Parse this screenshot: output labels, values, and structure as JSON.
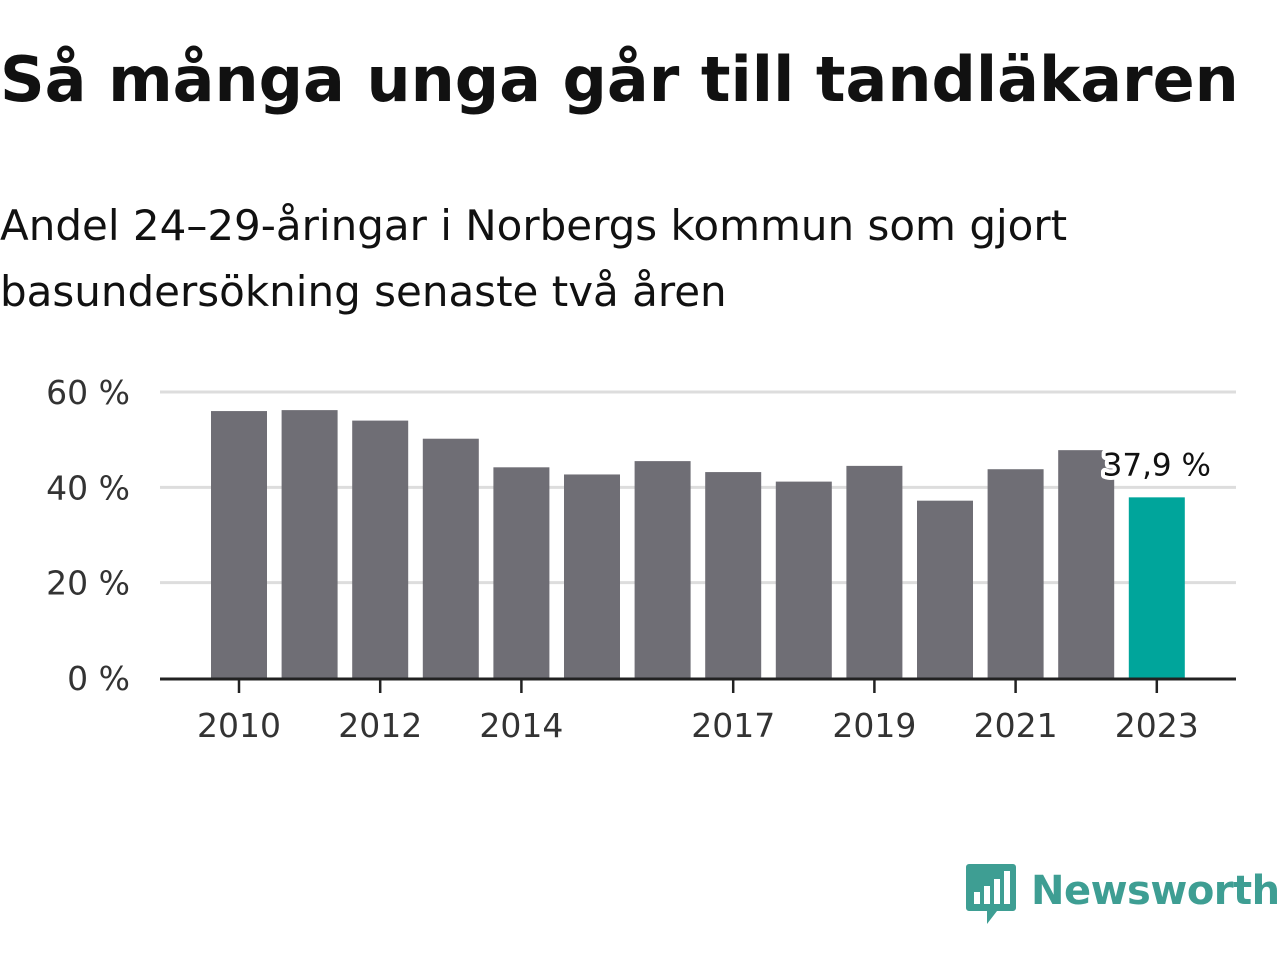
{
  "title": "Så många unga går till tandläkaren",
  "subtitle": "Andel 24–29-åringar i Norbergs kommun som gjort basundersökning senaste två åren",
  "brand": {
    "name": "Newsworthy",
    "icon": "chart-speech-bubble-icon",
    "color": "#3e9e93"
  },
  "colors": {
    "bar": "#6f6e75",
    "highlight": "#00a59b",
    "grid": "#dddddd",
    "axis": "#222222"
  },
  "chart_data": {
    "type": "bar",
    "categories": [
      "2010",
      "2011",
      "2012",
      "2013",
      "2014",
      "2015",
      "2016",
      "2017",
      "2018",
      "2019",
      "2020",
      "2021",
      "2022",
      "2023"
    ],
    "values": [
      56,
      56.2,
      54,
      50.2,
      44.2,
      42.7,
      45.5,
      43.2,
      41.2,
      44.5,
      37.2,
      43.8,
      47.8,
      37.9
    ],
    "highlight_index": 13,
    "data_label": "37,9 %",
    "xticks": [
      "2010",
      "2012",
      "2014",
      "2017",
      "2019",
      "2021",
      "2023"
    ],
    "yticks": [
      "0 %",
      "20 %",
      "40 %",
      "60 %"
    ],
    "ytick_values": [
      0,
      20,
      40,
      60
    ],
    "ylim": [
      0,
      60
    ],
    "grid": true
  }
}
